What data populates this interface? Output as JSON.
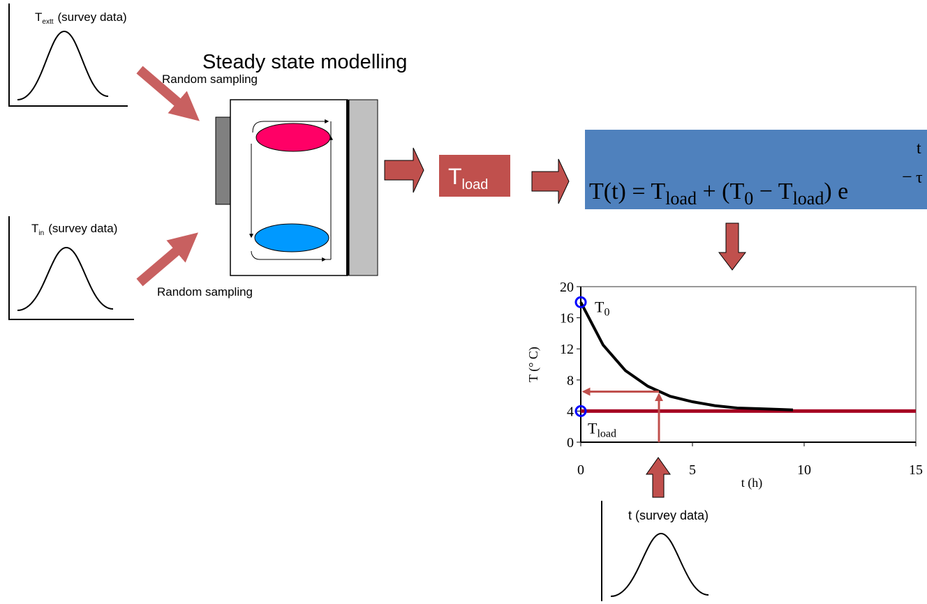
{
  "inputs": [
    {
      "symbol": "T",
      "subscript": "extt",
      "label": "(survey data)",
      "sampling": "Random sampling"
    },
    {
      "symbol": "T",
      "subscript": "in",
      "label": "(survey data)",
      "sampling": "Random sampling"
    }
  ],
  "model_title": "Steady state modelling",
  "result": {
    "symbol": "T",
    "subscript": "load"
  },
  "formula": {
    "tokens": [
      {
        "text": "T(t) = T",
        "sub": "load"
      },
      {
        "text": " + (T",
        "sub": "0"
      },
      {
        "text": " − T",
        "sub": "load"
      },
      {
        "text": ") e"
      }
    ],
    "exponent_sign": "−",
    "exponent_num": "t",
    "exponent_den": "τ"
  },
  "duration_input": {
    "label": "t (survey data)"
  },
  "chart_data": {
    "type": "line",
    "xlabel": "t (h)",
    "ylabel": "T (° C)",
    "xlim": [
      0,
      15
    ],
    "ylim": [
      0,
      20
    ],
    "xticks": [
      0,
      5,
      10,
      15
    ],
    "yticks": [
      0,
      4,
      8,
      12,
      16,
      20
    ],
    "x": [
      0,
      1,
      2,
      3,
      4,
      5,
      6,
      7,
      8,
      9,
      9.5
    ],
    "series": [
      {
        "color": "#000000",
        "values": [
          18,
          12.5,
          9.2,
          7.2,
          5.9,
          5.2,
          4.7,
          4.4,
          4.3,
          4.2,
          4.15
        ]
      }
    ],
    "reference_line": {
      "y": 4,
      "color": "#a50021"
    },
    "annotations": [
      {
        "text": "T",
        "sub": "0",
        "x": 0,
        "y": 18
      },
      {
        "text": "T",
        "sub": "load",
        "x": 0,
        "y": 4
      }
    ],
    "readout": {
      "x": 3.5,
      "y": 6.5,
      "color": "#c0504d"
    }
  }
}
